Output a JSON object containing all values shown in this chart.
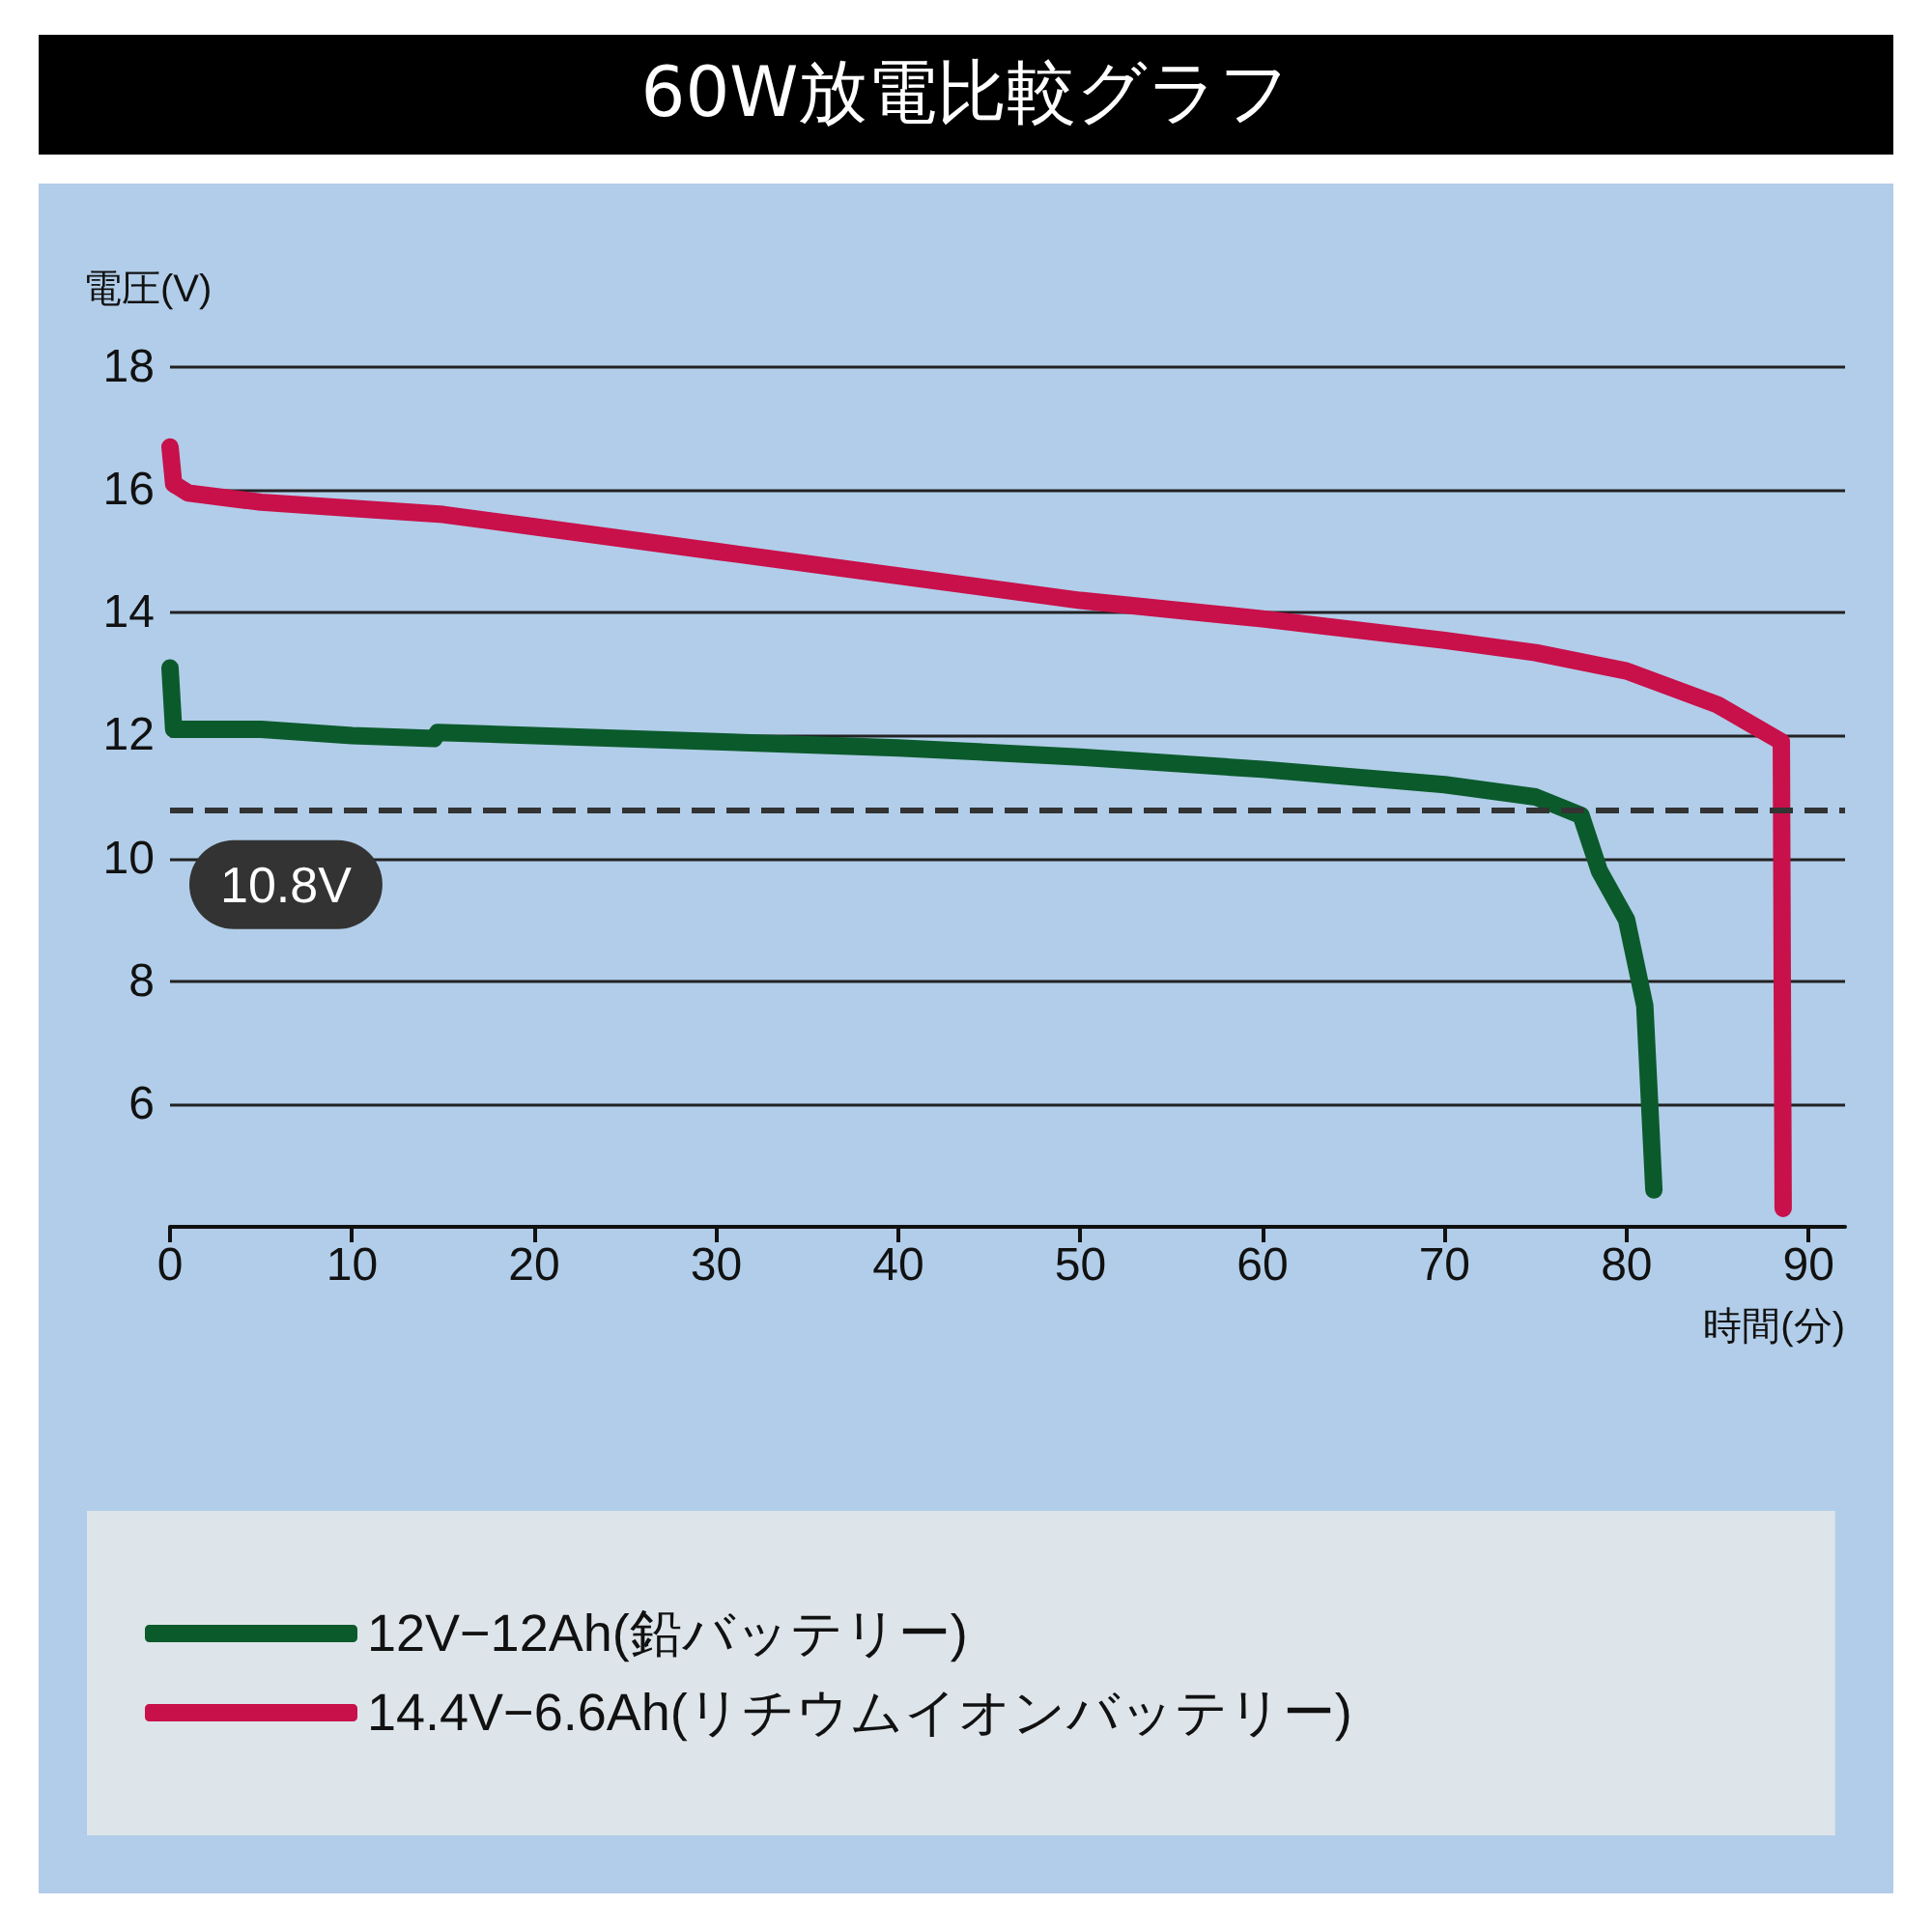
{
  "chart_data": {
    "type": "line",
    "title": "60W放電比較グラフ",
    "xlabel": "時間(分)",
    "ylabel": "電圧(V)",
    "xlim": [
      0,
      92
    ],
    "xticks": [
      0,
      10,
      20,
      30,
      40,
      50,
      60,
      70,
      80,
      90
    ],
    "ylim": [
      4,
      18
    ],
    "yticks": [
      6,
      8,
      10,
      12,
      14,
      16,
      18
    ],
    "grid": "y",
    "legend": "bottom",
    "line_style": "solid",
    "series": [
      {
        "name": "12V−12Ah(鉛バッテリー)",
        "color": "#0b5a2c",
        "x": [
          0,
          0.2,
          5,
          10,
          14.5,
          14.7,
          20,
          30,
          40,
          50,
          60,
          70,
          75,
          77.5,
          78.5,
          80,
          81,
          81.5
        ],
        "values": [
          13.1,
          12.1,
          12.1,
          12.0,
          11.95,
          12.05,
          12.0,
          11.9,
          11.8,
          11.65,
          11.45,
          11.2,
          11.0,
          10.7,
          9.8,
          9.0,
          7.6,
          4.6
        ]
      },
      {
        "name": "14.4V−6.6Ah(リチウムイオンバッテリー)",
        "color": "#c8104a",
        "x": [
          0,
          0.2,
          1,
          5,
          10,
          15,
          20,
          30,
          40,
          50,
          60,
          70,
          75,
          80,
          85,
          88.5,
          88.6
        ],
        "values": [
          16.7,
          16.1,
          15.95,
          15.8,
          15.7,
          15.6,
          15.4,
          15.0,
          14.6,
          14.2,
          13.9,
          13.55,
          13.35,
          13.05,
          12.5,
          11.9,
          4.3
        ]
      }
    ],
    "ref_lines": [
      {
        "axis": "y",
        "value": 10.8,
        "label": "10.8V",
        "color": "#333333",
        "line_style": "dashed"
      }
    ]
  }
}
